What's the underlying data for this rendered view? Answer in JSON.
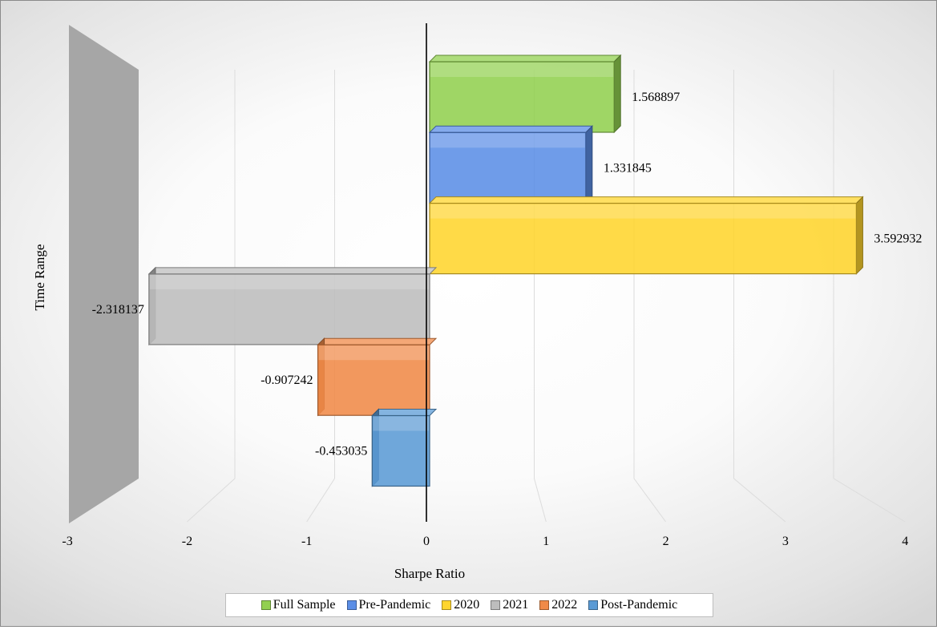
{
  "chart_data": {
    "type": "bar",
    "orientation": "horizontal",
    "style": "3d",
    "categories": [
      "Full Sample",
      "Pre-Pandemic",
      "2020",
      "2021",
      "2022",
      "Post-Pandemic"
    ],
    "values": [
      1.568897,
      1.331845,
      3.592932,
      -2.318137,
      -0.907242,
      -0.453035
    ],
    "data_labels": [
      "1.568897",
      "1.331845",
      "3.592932",
      "-2.318137",
      "-0.907242",
      "-0.453035"
    ],
    "series": [
      {
        "name": "Full Sample",
        "value": 1.568897,
        "color": "#92d050"
      },
      {
        "name": "Pre-Pandemic",
        "value": 1.331845,
        "color": "#5b8ee6"
      },
      {
        "name": "2020",
        "value": 3.592932,
        "color": "#ffd52e"
      },
      {
        "name": "2021",
        "value": -2.318137,
        "color": "#bdbdbd"
      },
      {
        "name": "2022",
        "value": -0.907242,
        "color": "#f08a48"
      },
      {
        "name": "Post-Pandemic",
        "value": -0.453035,
        "color": "#5b9bd5"
      }
    ],
    "xlabel": "Sharpe Ratio",
    "ylabel": "Time Range",
    "xlim": [
      -3,
      4
    ],
    "xticks": [
      "-3",
      "-2",
      "-1",
      "0",
      "1",
      "2",
      "3",
      "4"
    ],
    "grid": true,
    "legend_position": "bottom"
  }
}
